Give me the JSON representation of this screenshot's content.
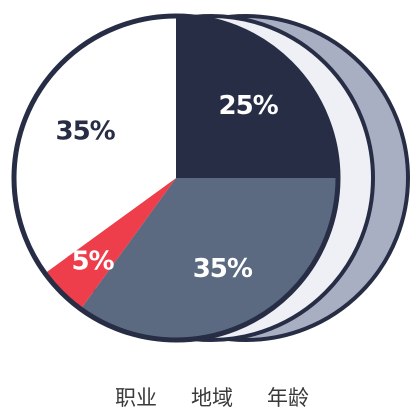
{
  "chart_data": {
    "type": "pie",
    "title": "",
    "slices": [
      {
        "label": "25%",
        "value": 25,
        "color": "#272d45"
      },
      {
        "label": "35%",
        "value": 35,
        "color": "#5b6a80"
      },
      {
        "label": "5%",
        "value": 5,
        "color": "#ef3e4b"
      },
      {
        "label": "35%",
        "value": 35,
        "color": "#ffffff"
      }
    ],
    "start_angle_deg": 0,
    "direction": "clockwise",
    "outline_color": "#272d45",
    "label_colors": {
      "dark_slice_text": "#ffffff",
      "light_slice_text": "#272d45"
    }
  },
  "colors": {
    "back_card": "#a9afc2",
    "middle_card": "#eef0f6",
    "outline": "#272d45"
  },
  "tabs": [
    {
      "label": "职业"
    },
    {
      "label": "地域"
    },
    {
      "label": "年龄"
    }
  ]
}
